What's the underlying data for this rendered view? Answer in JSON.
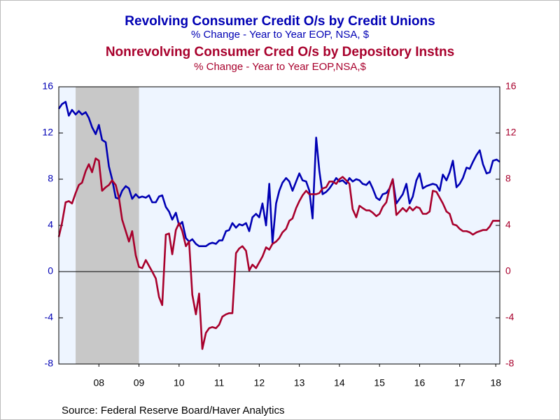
{
  "chart_data": {
    "type": "line",
    "source": "Source:  Federal Reserve Board/Haver Analytics",
    "x": [
      2007.5,
      2007.58,
      2007.67,
      2007.75,
      2007.83,
      2007.92,
      2008,
      2008.08,
      2008.17,
      2008.25,
      2008.33,
      2008.42,
      2008.5,
      2008.58,
      2008.67,
      2008.75,
      2008.83,
      2008.92,
      2009,
      2009.08,
      2009.17,
      2009.25,
      2009.33,
      2009.42,
      2009.5,
      2009.58,
      2009.67,
      2009.75,
      2009.83,
      2009.92,
      2010,
      2010.08,
      2010.17,
      2010.25,
      2010.33,
      2010.42,
      2010.5,
      2010.58,
      2010.67,
      2010.75,
      2010.83,
      2010.92,
      2011,
      2011.08,
      2011.17,
      2011.25,
      2011.33,
      2011.42,
      2011.5,
      2011.58,
      2011.67,
      2011.75,
      2011.83,
      2011.92,
      2012,
      2012.08,
      2012.17,
      2012.25,
      2012.33,
      2012.42,
      2012.5,
      2012.58,
      2012.67,
      2012.75,
      2012.83,
      2012.92,
      2013,
      2013.08,
      2013.17,
      2013.25,
      2013.33,
      2013.42,
      2013.5,
      2013.58,
      2013.67,
      2013.75,
      2013.83,
      2013.92,
      2014,
      2014.08,
      2014.17,
      2014.25,
      2014.33,
      2014.42,
      2014.5,
      2014.58,
      2014.67,
      2014.75,
      2014.83,
      2014.92,
      2015,
      2015.08,
      2015.17,
      2015.25,
      2015.33,
      2015.42,
      2015.5,
      2015.58,
      2015.67,
      2015.75,
      2015.83,
      2015.92,
      2016,
      2016.08,
      2016.17,
      2016.25,
      2016.33,
      2016.42,
      2016.5,
      2016.58,
      2016.67,
      2016.75,
      2016.83,
      2016.92,
      2017,
      2017.08,
      2017.17,
      2017.25,
      2017.33,
      2017.42,
      2017.5,
      2017.58,
      2017.67,
      2017.75,
      2017.83,
      2017.92,
      2018,
      2018.08,
      2018.17,
      2018.25,
      2018.33,
      2018.42,
      2018.5
    ],
    "series": [
      {
        "name": "Revolving Consumer Credit O/s by Credit Unions",
        "subtitle": "% Change - Year to Year    EOP, NSA, $",
        "color": "#0000b4",
        "axis": "y",
        "values": [
          14.1,
          14.5,
          14.7,
          13.5,
          14.0,
          13.6,
          13.9,
          13.6,
          13.8,
          13.3,
          12.5,
          11.9,
          12.7,
          11.4,
          11.2,
          9.1,
          8.0,
          6.4,
          6.3,
          7.0,
          7.4,
          7.2,
          6.3,
          6.7,
          6.4,
          6.5,
          6.4,
          6.6,
          6.0,
          6.0,
          6.5,
          6.6,
          5.6,
          5.2,
          4.5,
          5.1,
          4.0,
          4.3,
          2.9,
          2.6,
          2.8,
          2.4,
          2.2,
          2.2,
          2.2,
          2.4,
          2.5,
          2.4,
          2.7,
          2.7,
          3.5,
          3.6,
          4.2,
          3.8,
          4.1,
          4.0,
          4.2,
          3.5,
          4.7,
          5.0,
          4.7,
          5.9,
          4.0,
          7.6,
          2.5,
          5.9,
          7.0,
          7.7,
          8.1,
          7.8,
          7.0,
          7.8,
          8.5,
          7.9,
          7.8,
          7.0,
          4.6,
          11.6,
          8.7,
          6.7,
          6.9,
          7.2,
          7.6,
          8.1,
          7.8,
          7.9,
          7.6,
          8.1,
          7.8,
          8.0,
          7.9,
          7.6,
          7.5,
          7.8,
          7.2,
          6.4,
          6.2,
          6.7,
          6.8,
          7.2,
          8.0,
          5.9,
          6.3,
          6.7,
          7.6,
          5.9,
          6.5,
          7.9,
          8.5,
          7.2,
          7.4,
          7.5,
          7.6,
          7.5,
          7.0,
          8.4,
          7.9,
          8.6,
          9.6,
          7.3,
          7.6,
          8.1,
          9.0,
          8.9,
          9.5,
          10.1,
          10.5,
          9.3,
          8.5,
          8.6,
          9.6,
          9.7,
          9.5
        ]
      },
      {
        "name": "Nonrevolving Consumer Cred O/s by Depository Instns",
        "subtitle": "% Change - Year to Year    EOP,NSA,$",
        "color": "#a8002c",
        "axis": "y2",
        "values": [
          3.0,
          4.2,
          6.0,
          6.1,
          5.9,
          6.8,
          7.5,
          7.7,
          8.7,
          9.3,
          8.6,
          9.8,
          9.6,
          7.0,
          7.3,
          7.5,
          7.9,
          7.5,
          6.4,
          4.5,
          3.5,
          2.6,
          3.5,
          1.4,
          0.4,
          0.3,
          1.0,
          0.5,
          0.0,
          -0.6,
          -2.2,
          -2.9,
          3.2,
          3.3,
          1.5,
          3.6,
          4.2,
          3.5,
          2.2,
          2.6,
          -2.0,
          -3.7,
          -1.9,
          -6.7,
          -5.3,
          -4.9,
          -4.8,
          -4.9,
          -4.6,
          -3.9,
          -3.7,
          -3.6,
          -3.6,
          1.6,
          2.0,
          2.2,
          1.8,
          0.1,
          0.6,
          0.3,
          0.8,
          1.3,
          2.1,
          1.9,
          2.4,
          2.6,
          2.9,
          3.4,
          3.7,
          4.4,
          4.6,
          5.5,
          6.1,
          6.6,
          7.0,
          6.7,
          6.7,
          6.7,
          6.8,
          7.2,
          7.3,
          7.8,
          7.8,
          7.6,
          8.0,
          8.2,
          7.9,
          7.6,
          5.4,
          4.7,
          5.7,
          5.5,
          5.3,
          5.3,
          5.1,
          4.8,
          5.0,
          5.6,
          6.0,
          7.2,
          8.0,
          4.9,
          5.2,
          5.5,
          5.2,
          5.6,
          5.3,
          5.6,
          5.5,
          5.0,
          5.0,
          5.2,
          7.0,
          6.9,
          6.4,
          5.9,
          5.2,
          5.0,
          4.1,
          4.0,
          3.7,
          3.5,
          3.5,
          3.4,
          3.2,
          3.4,
          3.5,
          3.6,
          3.6,
          3.9,
          4.4,
          4.4,
          4.4
        ]
      }
    ],
    "xlim": [
      2007.5,
      2018.5
    ],
    "xticks": [
      {
        "value": 2008.5,
        "label": "08"
      },
      {
        "value": 2009.5,
        "label": "09"
      },
      {
        "value": 2010.5,
        "label": "10"
      },
      {
        "value": 2011.5,
        "label": "11"
      },
      {
        "value": 2012.5,
        "label": "12"
      },
      {
        "value": 2013.5,
        "label": "13"
      },
      {
        "value": 2014.5,
        "label": "14"
      },
      {
        "value": 2015.5,
        "label": "15"
      },
      {
        "value": 2016.5,
        "label": "16"
      },
      {
        "value": 2017.5,
        "label": "17"
      },
      {
        "value": 2018.4,
        "label": "18"
      }
    ],
    "ylim": [
      -8,
      16
    ],
    "yticks": [
      -8,
      -4,
      0,
      4,
      8,
      12,
      16
    ],
    "y2lim": [
      -8,
      16
    ],
    "y2ticks": [
      -8,
      -4,
      0,
      4,
      8,
      12,
      16
    ],
    "recession": [
      2007.92,
      2009.5
    ],
    "grid": false
  }
}
